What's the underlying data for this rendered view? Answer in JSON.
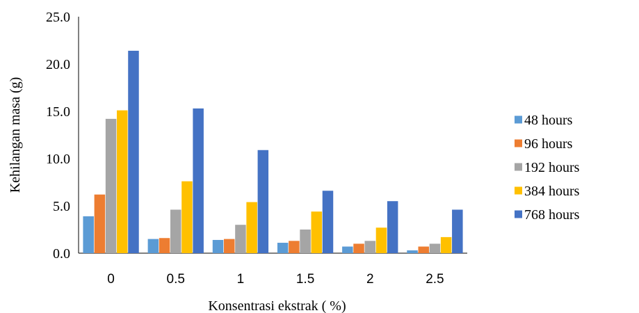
{
  "chart_data": {
    "type": "bar",
    "xlabel": "Konsentrasi ekstrak ( %)",
    "ylabel": "Kehilangan masa (g)",
    "categories": [
      "0",
      "0.5",
      "1",
      "1.5",
      "2",
      "2.5"
    ],
    "ylim": [
      0,
      25
    ],
    "yticks": [
      "0.0",
      "5.0",
      "10.0",
      "15.0",
      "20.0",
      "25.0"
    ],
    "grid": false,
    "legend_position": "right",
    "series": [
      {
        "name": "48 hours",
        "color": "#5B9BD5",
        "values": [
          3.9,
          1.5,
          1.4,
          1.1,
          0.7,
          0.3
        ]
      },
      {
        "name": "96 hours",
        "color": "#ED7D31",
        "values": [
          6.2,
          1.6,
          1.5,
          1.3,
          1.0,
          0.7
        ]
      },
      {
        "name": "192 hours",
        "color": "#A5A5A5",
        "values": [
          14.2,
          4.6,
          3.0,
          2.5,
          1.3,
          1.0
        ]
      },
      {
        "name": "384 hours",
        "color": "#FFC000",
        "values": [
          15.1,
          7.6,
          5.4,
          4.4,
          2.7,
          1.7
        ]
      },
      {
        "name": "768 hours",
        "color": "#4472C4",
        "values": [
          21.4,
          15.3,
          10.9,
          6.6,
          5.5,
          4.6
        ]
      }
    ]
  }
}
